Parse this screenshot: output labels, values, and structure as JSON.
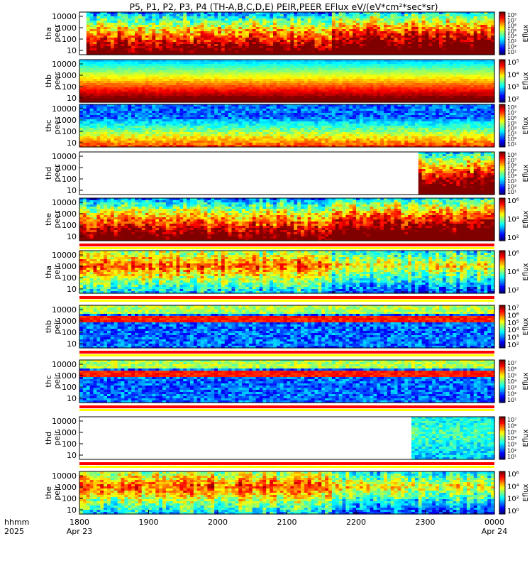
{
  "chart_data": {
    "type": "heatmap",
    "title": "P5, P1, P2, P3, P4 (TH-A,B,C,D,E) PEIR,PEER EFlux eV/(eV*cm²*sec*sr)",
    "x_axis": {
      "row_labels": [
        "hhmm",
        "2025"
      ],
      "ticks": [
        {
          "time": "1800",
          "date": "Apr 23"
        },
        {
          "time": "1900",
          "date": ""
        },
        {
          "time": "2000",
          "date": ""
        },
        {
          "time": "2100",
          "date": ""
        },
        {
          "time": "2200",
          "date": ""
        },
        {
          "time": "2300",
          "date": ""
        },
        {
          "time": "0000",
          "date": "Apr 24"
        }
      ]
    },
    "yticks": [
      "10000",
      "1000",
      "100",
      "10"
    ],
    "colorbar_label": "Eflux",
    "panels": [
      {
        "probe": "tha",
        "species": "peer",
        "cb": [
          "10⁸",
          "10⁷",
          "10⁶",
          "10⁵",
          "10⁴",
          "10³",
          "10²",
          "10¹"
        ],
        "data_start": 0.02,
        "data_end": 1.0,
        "style": "electron_active"
      },
      {
        "probe": "thb",
        "species": "peer",
        "cb": [
          "10⁵",
          "10⁴",
          "10³",
          "10²"
        ],
        "data_start": 0.0,
        "data_end": 1.0,
        "style": "electron_quiet"
      },
      {
        "probe": "thc",
        "species": "peer",
        "cb": [
          "10⁸",
          "10⁷",
          "10⁶",
          "10⁵",
          "10⁴",
          "10³",
          "10²",
          "10¹"
        ],
        "data_start": 0.0,
        "data_end": 1.0,
        "style": "electron_noisy"
      },
      {
        "probe": "thd",
        "species": "peer",
        "cb": [
          "10⁸",
          "10⁷",
          "10⁶",
          "10⁵",
          "10⁴",
          "10³",
          "10²",
          "10¹"
        ],
        "data_start": 0.82,
        "data_end": 1.0,
        "style": "electron_active"
      },
      {
        "probe": "the",
        "species": "peer",
        "cb": [
          "10⁶",
          "10⁴",
          "10²"
        ],
        "data_start": 0.0,
        "data_end": 1.0,
        "style": "electron_active"
      },
      {
        "probe": "tha",
        "species": "peir",
        "cb": [
          "10⁶",
          "10⁴",
          "10²"
        ],
        "data_start": 0.0,
        "data_end": 1.0,
        "style": "ion_active"
      },
      {
        "probe": "thb",
        "species": "peir",
        "cb": [
          "10⁷",
          "10⁶",
          "10⁵",
          "10⁴",
          "10³",
          "10²"
        ],
        "data_start": 0.0,
        "data_end": 1.0,
        "style": "ion_noisy"
      },
      {
        "probe": "thc",
        "species": "peir",
        "cb": [
          "10⁷",
          "10⁶",
          "10⁵",
          "10⁴",
          "10³",
          "10²",
          "10¹"
        ],
        "data_start": 0.0,
        "data_end": 1.0,
        "style": "ion_noisy"
      },
      {
        "probe": "thd",
        "species": "peir",
        "cb": [
          "10⁷",
          "10⁶",
          "10⁵",
          "10⁴",
          "10³",
          "10²",
          "10¹"
        ],
        "data_start": 0.8,
        "data_end": 1.0,
        "style": "ion_quiet"
      },
      {
        "probe": "the",
        "species": "peir",
        "cb": [
          "10⁶",
          "10⁴",
          "10²",
          "10⁰"
        ],
        "data_start": 0.0,
        "data_end": 1.0,
        "style": "ion_active"
      }
    ]
  }
}
